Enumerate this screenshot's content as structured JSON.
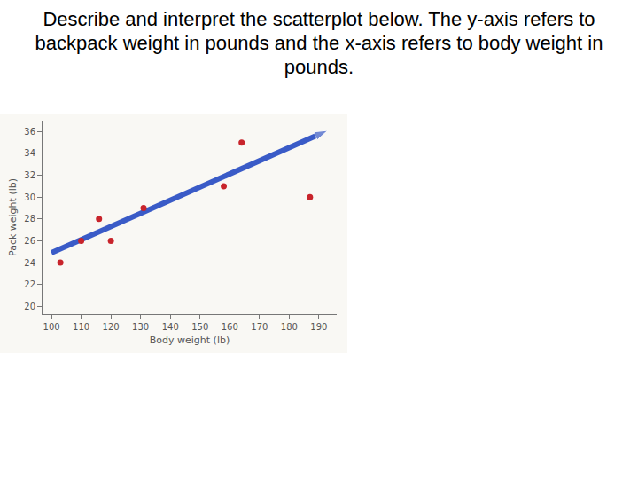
{
  "chart_data": {
    "type": "scatter",
    "title": "Describe and interpret the scatterplot below.  The y-axis refers to backpack weight in pounds and the x-axis refers to body weight in pounds.",
    "x_label": "Body weight (lb)",
    "y_label": "Pack weight (lb)",
    "xlim": [
      97,
      196
    ],
    "ylim": [
      19.3,
      37
    ],
    "xticks": [
      100,
      110,
      120,
      130,
      140,
      150,
      160,
      170,
      180,
      190
    ],
    "yticks": [
      20,
      22,
      24,
      26,
      28,
      30,
      32,
      34,
      36
    ],
    "grid": false,
    "series": [
      {
        "type": "scatter",
        "color": "#c8242b",
        "marker": "circle",
        "x": [
          103,
          110,
          116,
          120,
          131,
          158,
          164,
          187
        ],
        "values": [
          24,
          26,
          28,
          26,
          29,
          31,
          35,
          30
        ]
      },
      {
        "type": "line",
        "color": "#3a5bc7",
        "marker": "arrow",
        "line_style": "solid",
        "x": [
          100,
          193
        ],
        "values": [
          24.9,
          36.1
        ]
      }
    ]
  }
}
